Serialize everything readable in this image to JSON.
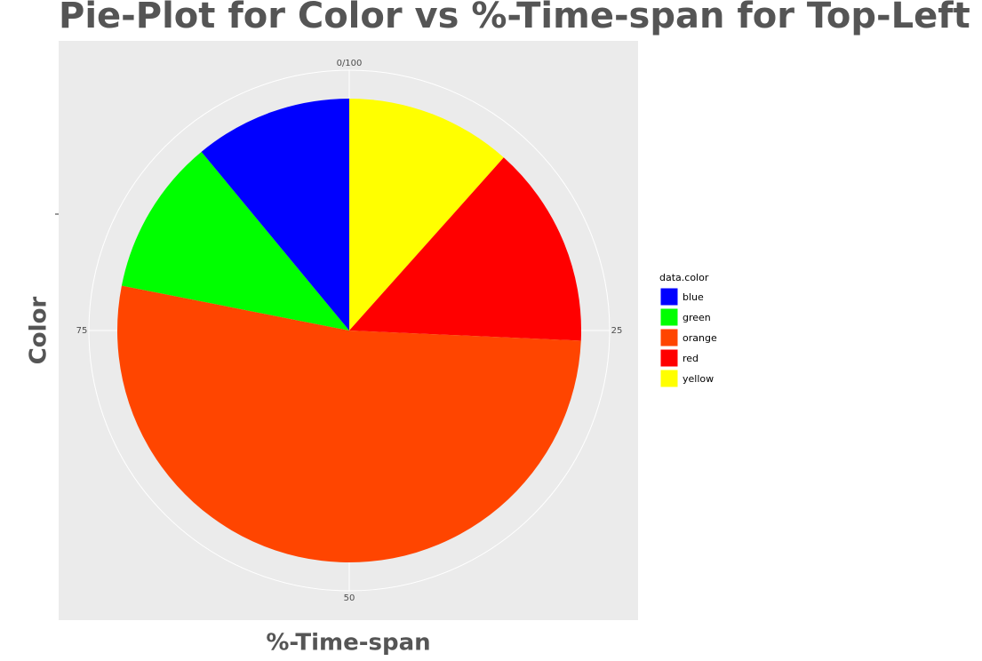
{
  "chart_data": {
    "type": "pie",
    "title": "Pie-Plot for Color vs %-Time-span for Top-Left circle",
    "x_label": "%-Time-span",
    "y_label": "Color",
    "legend_title": "data.color",
    "categories": [
      "blue",
      "green",
      "orange",
      "red",
      "yellow"
    ],
    "values": [
      11.0,
      10.9,
      52.4,
      14.1,
      11.6
    ],
    "colors": [
      "#0000ff",
      "#00ff00",
      "#ff4500",
      "#ff0000",
      "#ffff00"
    ],
    "xlim": [
      0,
      100
    ],
    "xticks": [
      {
        "value": 0,
        "label": "0/100"
      },
      25,
      50,
      75
    ],
    "grid": true,
    "legend": "right"
  }
}
